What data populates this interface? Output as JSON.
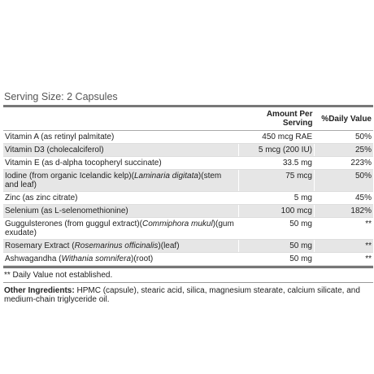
{
  "serving_size": "Serving Size: 2 Capsules",
  "table": {
    "header": [
      "Amount Per Serving",
      "%Daily Value"
    ],
    "rows": [
      {
        "name": [
          {
            "text": "Vitamin A (as retinyl palmitate)"
          }
        ],
        "amount": "450 mcg RAE",
        "dv": "50%"
      },
      {
        "name": [
          {
            "text": "Vitamin D3 (cholecalciferol)"
          }
        ],
        "amount": "5 mcg (200 IU)",
        "dv": "25%"
      },
      {
        "name": [
          {
            "text": "Vitamin E (as d-alpha tocopheryl succinate)"
          }
        ],
        "amount": "33.5 mg",
        "dv": "223%"
      },
      {
        "name": [
          {
            "text": "Iodine (from organic Icelandic kelp)("
          },
          {
            "text": "Laminaria digitata",
            "italic": true
          },
          {
            "text": ")(stem and leaf)"
          }
        ],
        "amount": "75 mcg",
        "dv": "50%"
      },
      {
        "name": [
          {
            "text": "Zinc (as zinc citrate)"
          }
        ],
        "amount": "5 mg",
        "dv": "45%"
      },
      {
        "name": [
          {
            "text": "Selenium (as L-selenomethionine)"
          }
        ],
        "amount": "100 mcg",
        "dv": "182%"
      },
      {
        "name": [
          {
            "text": "Guggulsterones (from guggul extract)("
          },
          {
            "text": "Commiphora mukul",
            "italic": true
          },
          {
            "text": ")(gum exudate)"
          }
        ],
        "amount": "50 mg",
        "dv": "**"
      },
      {
        "name": [
          {
            "text": "Rosemary Extract ("
          },
          {
            "text": "Rosemarinus officinalis",
            "italic": true
          },
          {
            "text": ")(leaf)"
          }
        ],
        "amount": "50 mg",
        "dv": "**"
      },
      {
        "name": [
          {
            "text": "Ashwagandha ("
          },
          {
            "text": "Withania somnifera",
            "italic": true
          },
          {
            "text": ")(root)"
          }
        ],
        "amount": "50 mg",
        "dv": "**"
      }
    ],
    "footnote": "** Daily Value not established."
  },
  "other_ingredients": {
    "label": "Other Ingredients:",
    "text": " HPMC (capsule), stearic acid, silica, magnesium stearate, calcium silicate, and medium-chain triglyceride oil."
  }
}
